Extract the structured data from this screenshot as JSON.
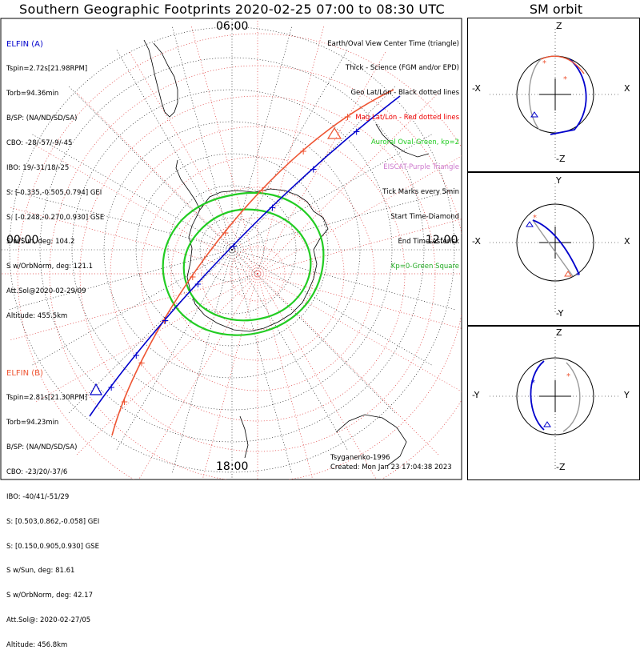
{
  "title": "Southern Geographic Footprints 2020-02-25 07:00 to 08:30 UTC",
  "orbit_title": "SM orbit",
  "time_labels": {
    "top": "06:00",
    "left": "00:00",
    "right": "12:00",
    "bottom": "18:00"
  },
  "legend": [
    {
      "text": "Earth/Oval View Center Time (triangle)",
      "color": "#000000"
    },
    {
      "text": "Thick - Science (FGM and/or EPD)",
      "color": "#000000"
    },
    {
      "text": "Geo Lat/Lon - Black dotted lines",
      "color": "#000000"
    },
    {
      "text": "Mag Lat/Lon - Red dotted lines",
      "color": "#ee0000"
    },
    {
      "text": "Auroral Oval-Green, kp=2",
      "color": "#22cc22"
    },
    {
      "text": "EISCAT-Purple Triangle",
      "color": "#cc77cc"
    },
    {
      "text": "Tick Marks every 5min",
      "color": "#000000"
    },
    {
      "text": "Start Time-Diamond",
      "color": "#000000"
    },
    {
      "text": "End Time-Asterisk",
      "color": "#000000"
    },
    {
      "text": "Kp=0-Green Square",
      "color": "#22aa22"
    }
  ],
  "elfin_a": {
    "name": "ELFIN (A)",
    "color": "#0000cc",
    "lines": [
      "Tspin=2.72s[21.98RPM]",
      "Torb=94.36min",
      "B/SP: (NA/ND/SD/SA)",
      "CBO: -28/-57/-9/-45",
      "IBO: 19/-31/18/-25",
      "S: [-0.335,-0.505,0.794] GEI",
      "S: [-0.248,-0.270,0.930] GSE",
      "S w/Sun, deg: 104.2",
      "S w/OrbNorm, deg: 121.1",
      "Att.Sol@2020-02-29/09",
      "Altitude: 455.5km"
    ]
  },
  "elfin_b": {
    "name": "ELFIN (B)",
    "color": "#ee5533",
    "lines": [
      "Tspin=2.81s[21.30RPM]",
      "Torb=94.23min",
      "B/SP: (NA/ND/SD/SA)",
      "CBO: -23/20/-37/6",
      "IBO: -40/41/-51/29",
      "S: [0.503,0.862,-0.058] GEI",
      "S: [0.150,0.905,0.930] GSE",
      "S w/Sun, deg: 81.61",
      "S w/OrbNorm, deg: 42.17",
      "Att.Sol@: 2020-02-27/05",
      "Altitude: 456.8km"
    ]
  },
  "credit": {
    "model": "Tsyganenko-1996",
    "created": "Created: Mon Jan 23 17:04:38 2023"
  },
  "panels": [
    {
      "up": "Z",
      "down": "-Z",
      "left": "-X",
      "right": "X"
    },
    {
      "up": "Y",
      "down": "-Y",
      "left": "-X",
      "right": "X"
    },
    {
      "up": "Z",
      "down": "-Z",
      "left": "-Y",
      "right": "Y"
    }
  ],
  "colors": {
    "elfin_a": "#0000cc",
    "elfin_b": "#ee5533",
    "oval": "#22cc22",
    "mag_grid": "#dd3333",
    "geo_grid": "#000000",
    "orbit_ref": "#999999"
  },
  "chart_data": {
    "type": "polar-map",
    "title": "Southern Geographic Footprints 2020-02-25 07:00 to 08:30 UTC",
    "series": [
      {
        "name": "ELFIN (A)",
        "color": "#0000cc",
        "tick_count": 8
      },
      {
        "name": "ELFIN (B)",
        "color": "#ee5533",
        "tick_count": 8
      }
    ],
    "oval_kp": 2,
    "tick_interval_min": 5
  }
}
